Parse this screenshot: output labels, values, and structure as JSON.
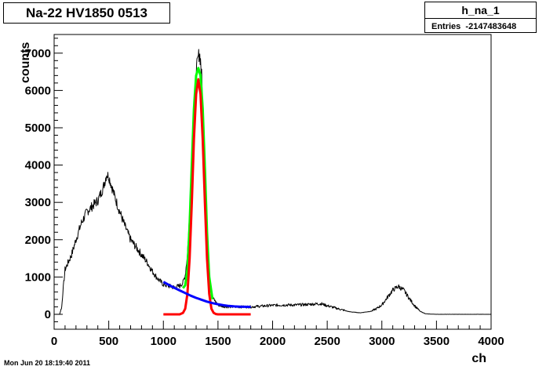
{
  "canvas": {
    "title": "Na-22 HV1850 0513",
    "timestamp": "Mon Jun 20 18:19:40 2011"
  },
  "stats": {
    "name": "h_na_1",
    "entries_label": "Entries",
    "entries_value": "-2147483648"
  },
  "chart_data": {
    "type": "line",
    "title": "Na-22 HV1850 0513",
    "xlabel": "ch",
    "ylabel": "counts",
    "xlim": [
      0,
      4000
    ],
    "ylim": [
      -400,
      7500
    ],
    "x_ticks": [
      "0",
      "500",
      "1000",
      "1500",
      "2000",
      "2500",
      "3000",
      "3500",
      "4000"
    ],
    "y_ticks": [
      "0",
      "1000",
      "2000",
      "3000",
      "4000",
      "5000",
      "6000",
      "7000"
    ],
    "grid": false,
    "series": [
      {
        "color": "#000000",
        "style": "histogram",
        "x": [
          0,
          50,
          70,
          80,
          100,
          130,
          160,
          200,
          250,
          300,
          350,
          400,
          450,
          480,
          500,
          520,
          550,
          600,
          650,
          700,
          750,
          800,
          850,
          900,
          950,
          1000,
          1050,
          1100,
          1150,
          1180,
          1200,
          1220,
          1240,
          1260,
          1280,
          1300,
          1320,
          1330,
          1340,
          1350,
          1360,
          1380,
          1400,
          1420,
          1450,
          1500,
          1550,
          1600,
          1700,
          1800,
          1900,
          2000,
          2100,
          2200,
          2300,
          2400,
          2450,
          2500,
          2600,
          2700,
          2800,
          2900,
          2950,
          3000,
          3050,
          3100,
          3150,
          3200,
          3250,
          3300,
          3350,
          3400,
          3450,
          3500,
          3600,
          3800,
          4000
        ],
        "values": [
          0,
          0,
          200,
          600,
          1200,
          1400,
          1600,
          2000,
          2450,
          2750,
          2900,
          3050,
          3400,
          3750,
          3700,
          3500,
          3200,
          2750,
          2350,
          2000,
          1800,
          1600,
          1400,
          1150,
          950,
          800,
          760,
          720,
          760,
          850,
          1050,
          1600,
          2700,
          4100,
          5500,
          6500,
          6900,
          7000,
          6800,
          6400,
          5700,
          4000,
          2300,
          1100,
          450,
          250,
          210,
          200,
          200,
          200,
          220,
          240,
          250,
          250,
          260,
          280,
          280,
          230,
          150,
          70,
          40,
          80,
          150,
          250,
          450,
          650,
          750,
          650,
          430,
          230,
          80,
          15,
          5,
          0,
          0,
          0,
          0
        ]
      },
      {
        "color": "#00ff00",
        "style": "fit",
        "x": [
          1180,
          1200,
          1220,
          1240,
          1260,
          1280,
          1300,
          1320,
          1340,
          1360,
          1380,
          1400,
          1420,
          1450
        ],
        "values": [
          700,
          780,
          1200,
          2400,
          4000,
          5500,
          6400,
          6600,
          6400,
          5500,
          3900,
          2200,
          1000,
          400
        ]
      },
      {
        "color": "#ff0000",
        "style": "fit",
        "x": [
          1000,
          1150,
          1180,
          1200,
          1220,
          1240,
          1260,
          1280,
          1300,
          1320,
          1340,
          1360,
          1380,
          1400,
          1420,
          1440,
          1460,
          1480,
          1500,
          1550,
          1800
        ],
        "values": [
          0,
          0,
          40,
          150,
          550,
          1500,
          3000,
          4700,
          5900,
          6300,
          5900,
          4700,
          3000,
          1500,
          550,
          150,
          40,
          8,
          0,
          0,
          0
        ]
      },
      {
        "color": "#0000ff",
        "style": "fit",
        "x": [
          1000,
          1050,
          1100,
          1150,
          1200,
          1250,
          1300,
          1350,
          1400,
          1450,
          1500,
          1550,
          1600,
          1650,
          1700,
          1750,
          1800
        ],
        "values": [
          870,
          790,
          710,
          640,
          570,
          500,
          440,
          390,
          340,
          300,
          270,
          245,
          225,
          212,
          205,
          200,
          198
        ]
      }
    ]
  }
}
